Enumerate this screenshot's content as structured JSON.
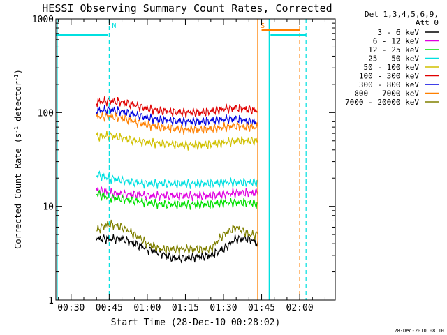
{
  "chart_data": {
    "type": "line",
    "title": "HESSI Observing Summary Count Rates, Corrected",
    "xlabel": "Start Time (28-Dec-10 00:28:02)",
    "ylabel": "Corrected Count Rate (s",
    "ylabel_sup": "-1",
    "ylabel_mid": " detector",
    "ylabel_tail": ")",
    "yscale": "log",
    "ylim": [
      1,
      1000
    ],
    "xlim_minutes": [
      24,
      134
    ],
    "x_ticks": [
      {
        "label": "00:30",
        "minute": 30
      },
      {
        "label": "00:45",
        "minute": 45
      },
      {
        "label": "01:00",
        "minute": 60
      },
      {
        "label": "01:15",
        "minute": 75
      },
      {
        "label": "01:30",
        "minute": 90
      },
      {
        "label": "01:45",
        "minute": 105
      },
      {
        "label": "02:00",
        "minute": 120
      }
    ],
    "y_ticks": [
      {
        "label": "1",
        "value": 1
      },
      {
        "label": "10",
        "value": 10
      },
      {
        "label": "100",
        "value": 100
      },
      {
        "label": "1000",
        "value": 1000
      }
    ],
    "legend_header": [
      "Det 1,3,4,5,6,9,",
      "Att 0"
    ],
    "legend_position": "right",
    "series": [
      {
        "name": "3 - 6 keV",
        "color": "#000000",
        "x": [
          40,
          42,
          45,
          50,
          55,
          60,
          65,
          70,
          75,
          80,
          85,
          90,
          95,
          100,
          103.5
        ],
        "y": [
          4.5,
          4.5,
          4.5,
          4.5,
          4.0,
          3.5,
          3.2,
          2.8,
          2.8,
          2.9,
          3.0,
          3.5,
          4.5,
          4.5,
          4.0
        ]
      },
      {
        "name": "6 - 12 keV",
        "color": "#e000e0",
        "x": [
          40,
          42,
          45,
          50,
          55,
          60,
          65,
          70,
          75,
          80,
          85,
          90,
          95,
          100,
          103.5
        ],
        "y": [
          15,
          14.5,
          14,
          13.5,
          13.5,
          13,
          13,
          13,
          13,
          13,
          13,
          13.5,
          14,
          14,
          14
        ]
      },
      {
        "name": "12 - 25 keV",
        "color": "#00e000",
        "x": [
          40,
          42,
          45,
          50,
          55,
          60,
          65,
          70,
          75,
          80,
          85,
          90,
          95,
          100,
          103.5
        ],
        "y": [
          14,
          13,
          12.5,
          12,
          11.5,
          11,
          10.5,
          10.5,
          10.5,
          10.5,
          10.5,
          11,
          11,
          11,
          10.5
        ]
      },
      {
        "name": "25 - 50 keV",
        "color": "#00e0e0",
        "x": [
          40,
          42,
          45,
          50,
          55,
          60,
          65,
          70,
          75,
          80,
          85,
          90,
          95,
          100,
          103.5
        ],
        "y": [
          22,
          21,
          20,
          19,
          18,
          17.5,
          17.5,
          17.5,
          17.5,
          17.5,
          17.5,
          18,
          18,
          18,
          18
        ]
      },
      {
        "name": "50 - 100 keV",
        "color": "#d0c000",
        "x": [
          40,
          42,
          45,
          50,
          55,
          60,
          65,
          70,
          75,
          80,
          85,
          90,
          95,
          100,
          103.5
        ],
        "y": [
          55,
          56,
          57,
          54,
          50,
          48,
          47,
          46,
          45,
          45,
          46,
          48,
          50,
          50,
          50
        ]
      },
      {
        "name": "100 - 300 keV",
        "color": "#e00000",
        "x": [
          40,
          42,
          45,
          50,
          55,
          60,
          65,
          70,
          75,
          80,
          85,
          90,
          95,
          100,
          103.5
        ],
        "y": [
          130,
          132,
          133,
          130,
          120,
          110,
          105,
          102,
          100,
          100,
          103,
          110,
          112,
          108,
          105
        ]
      },
      {
        "name": "300 - 800 keV",
        "color": "#0000e0",
        "x": [
          40,
          42,
          45,
          50,
          55,
          60,
          65,
          70,
          75,
          80,
          85,
          90,
          95,
          100,
          103.5
        ],
        "y": [
          105,
          106,
          107,
          103,
          95,
          88,
          84,
          82,
          80,
          80,
          82,
          85,
          86,
          80,
          78
        ]
      },
      {
        "name": "800 - 7000 keV",
        "color": "#ff8000",
        "x": [
          40,
          42,
          45,
          50,
          55,
          60,
          65,
          70,
          75,
          80,
          85,
          90,
          95,
          100,
          103.5
        ],
        "y": [
          90,
          91,
          91,
          88,
          80,
          74,
          70,
          68,
          66,
          66,
          67,
          70,
          72,
          70,
          70
        ]
      },
      {
        "name": "7000 - 20000 keV",
        "color": "#808000",
        "x": [
          40,
          42,
          45,
          50,
          55,
          60,
          65,
          70,
          75,
          80,
          85,
          90,
          95,
          100,
          103.5
        ],
        "y": [
          5.5,
          6,
          6.5,
          6,
          5,
          4,
          3.5,
          3.5,
          3.5,
          3.5,
          3.5,
          5,
          6,
          5,
          5
        ]
      }
    ],
    "annotations": [
      {
        "label": "N",
        "color": "#00e0e0",
        "minute": 45,
        "y": 800
      },
      {
        "label": "S",
        "color": "#ff8000",
        "minute": 103.5,
        "y": 800
      }
    ],
    "saa_bars": [
      {
        "color": "#00e0e0",
        "x": [
          24,
          44.5
        ],
        "y": 680
      },
      {
        "color": "#00e0e0",
        "x": [
          108.5,
          122.5
        ],
        "y": 680
      },
      {
        "color": "#ff8000",
        "x": [
          105,
          120
        ],
        "y": 760
      }
    ],
    "solid_vlines": [
      {
        "color": "#00e0e0",
        "minute": 24.5
      },
      {
        "color": "#00e0e0",
        "minute": 108
      },
      {
        "color": "#ff8000",
        "minute": 103.5
      }
    ],
    "dashed_vlines": [
      {
        "color": "#00e0e0",
        "minute": 45
      },
      {
        "color": "#00e0e0",
        "minute": 122.5
      },
      {
        "color": "#ff8000",
        "minute": 120
      }
    ],
    "grid": false
  },
  "footer_timestamp": "28-Dec-2010 08:10"
}
